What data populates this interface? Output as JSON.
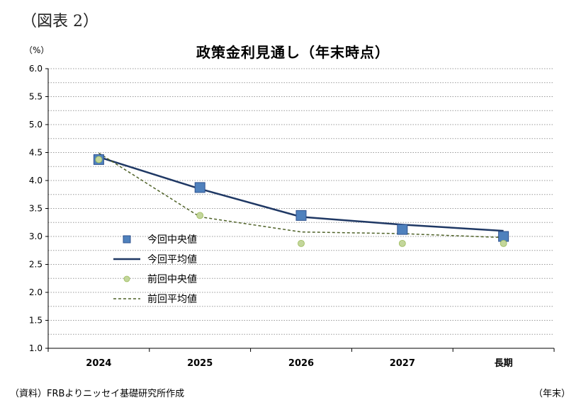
{
  "figure_label": "（図表 2）",
  "unit_label": "（%）",
  "x_unit_label": "（年末）",
  "source_note": "（資料）FRBよりニッセイ基礎研究所作成",
  "colors": {
    "current_median": "#4f81bd",
    "current_mean": "#1f3864",
    "previous_median": "#c3d69b",
    "previous_mean": "#4f6228",
    "grid": "#9a9a9a"
  },
  "chart_data": {
    "type": "line",
    "title": "政策金利見通し（年末時点）",
    "xlabel": "",
    "ylabel": "",
    "categories": [
      "2024",
      "2025",
      "2026",
      "2027",
      "長期"
    ],
    "ylim": [
      1.0,
      6.0
    ],
    "yticks": [
      "1.0",
      "1.5",
      "2.0",
      "2.5",
      "3.0",
      "3.5",
      "4.0",
      "4.5",
      "5.0",
      "5.5",
      "6.0"
    ],
    "grid": true,
    "legend_position": "center-left",
    "series": [
      {
        "name": "今回中央値",
        "kind": "marker-square",
        "values": [
          4.375,
          3.875,
          3.375,
          3.125,
          3.0
        ]
      },
      {
        "name": "今回平均値",
        "kind": "line-solid",
        "values": [
          4.42,
          3.85,
          3.35,
          3.21,
          3.1
        ]
      },
      {
        "name": "前回中央値",
        "kind": "marker-circle",
        "values": [
          4.375,
          3.375,
          2.875,
          2.875,
          2.875
        ]
      },
      {
        "name": "前回平均値",
        "kind": "line-dashed",
        "values": [
          4.49,
          3.35,
          3.08,
          3.05,
          2.98
        ]
      }
    ]
  }
}
